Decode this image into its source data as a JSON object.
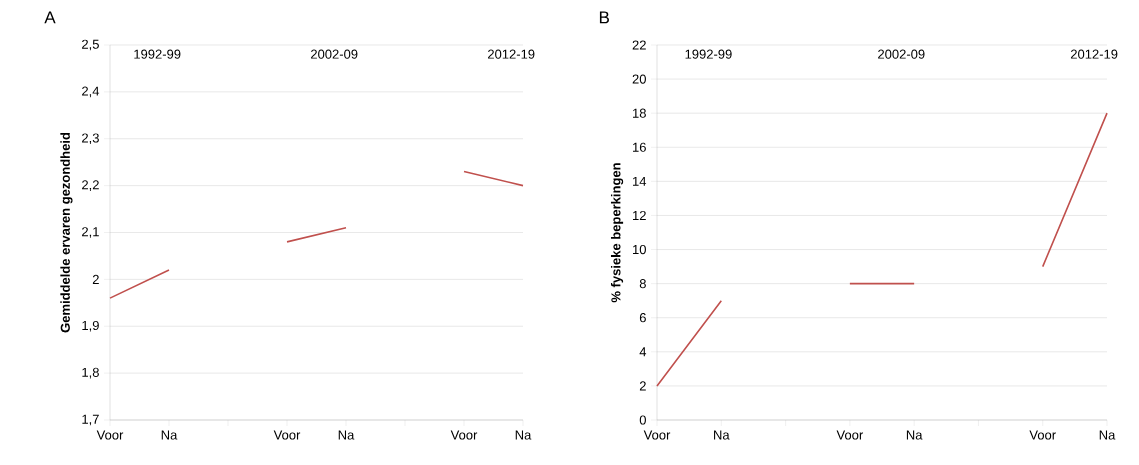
{
  "chart_data": [
    {
      "type": "line",
      "title": "A",
      "ylabel": "Gemiddelde ervaren gezondheid",
      "categories": [
        "Voor",
        "Na",
        null,
        "Voor",
        "Na",
        null,
        "Voor",
        "Na"
      ],
      "values": [
        1.96,
        2.02,
        null,
        2.08,
        2.11,
        null,
        2.23,
        2.2
      ],
      "color": "#c0504d",
      "ylim": [
        1.7,
        2.5
      ],
      "yticks": [
        {
          "value": 1.7,
          "label": "1,7"
        },
        {
          "value": 1.8,
          "label": "1,8"
        },
        {
          "value": 1.9,
          "label": "1,9"
        },
        2,
        {
          "value": 2.1,
          "label": "2,1"
        },
        {
          "value": 2.2,
          "label": "2,2"
        },
        {
          "value": 2.3,
          "label": "2,3"
        },
        {
          "value": 2.4,
          "label": "2,4"
        },
        {
          "value": 2.5,
          "label": "2,5"
        }
      ],
      "grid": "y",
      "marker": "none",
      "line_style": "solid",
      "annotations": [
        "1992-99",
        "2002-09",
        "2012-19"
      ]
    },
    {
      "type": "line",
      "title": "B",
      "ylabel": "% fysieke beperkingen",
      "categories": [
        "Voor",
        "Na",
        null,
        "Voor",
        "Na",
        null,
        "Voor",
        "Na"
      ],
      "values": [
        2,
        7,
        null,
        8,
        8,
        null,
        9,
        18
      ],
      "color": "#c0504d",
      "ylim": [
        0,
        22
      ],
      "yticks": [
        0,
        2,
        4,
        6,
        8,
        10,
        12,
        14,
        16,
        18,
        20,
        22
      ],
      "grid": "y",
      "marker": "none",
      "line_style": "solid",
      "annotations": [
        "1992-99",
        "2002-09",
        "2012-19"
      ]
    }
  ]
}
